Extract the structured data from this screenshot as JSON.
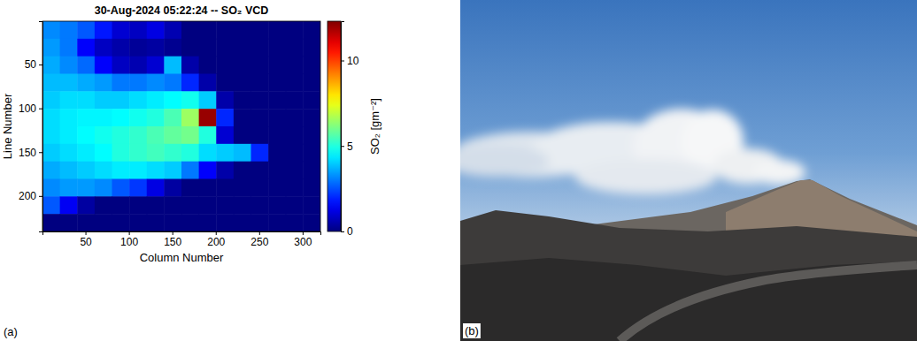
{
  "chart_data": {
    "type": "heatmap",
    "title": "30-Aug-2024 05:22:24 -- SO₂ VCD",
    "x_label": "Column Number",
    "y_label": "Line Number",
    "panel_label": "(a)",
    "xlim": [
      0.5,
      320.5
    ],
    "ylim": [
      0.5,
      240.5
    ],
    "xticks": [
      50,
      100,
      150,
      200,
      250,
      300
    ],
    "yticks": [
      50,
      100,
      150,
      200
    ],
    "x_edges": [
      0.5,
      20.5,
      40.5,
      60.5,
      80.5,
      100.5,
      120.5,
      140.5,
      160.5,
      180.5,
      200.5,
      220.5,
      240.5,
      260.5,
      280.5,
      300.5,
      320.5
    ],
    "y_edges": [
      0.5,
      20.5,
      40.5,
      60.5,
      80.5,
      100.5,
      120.5,
      140.5,
      160.5,
      180.5,
      200.5,
      220.5,
      240.5
    ],
    "values": [
      [
        3.2,
        3.0,
        2.6,
        1.8,
        1.0,
        0.8,
        1.2,
        0.6,
        0,
        0,
        0,
        0,
        0,
        0,
        0,
        0
      ],
      [
        3.4,
        3.0,
        1.5,
        0.8,
        0.5,
        0.3,
        0.4,
        0.2,
        0,
        0,
        0,
        0,
        0,
        0,
        0,
        0
      ],
      [
        3.6,
        3.2,
        2.8,
        1.5,
        0.8,
        0.6,
        1.0,
        3.8,
        0.5,
        0,
        0,
        0,
        0,
        0,
        0,
        0
      ],
      [
        3.8,
        3.8,
        3.6,
        3.4,
        3.0,
        3.0,
        3.2,
        3.0,
        2.0,
        0.5,
        0,
        0,
        0,
        0,
        0,
        0
      ],
      [
        4.0,
        4.2,
        4.2,
        4.0,
        4.0,
        4.2,
        4.4,
        4.6,
        4.8,
        4.0,
        0.5,
        0,
        0,
        0,
        0,
        0
      ],
      [
        4.2,
        4.4,
        4.5,
        4.5,
        4.6,
        4.8,
        5.0,
        5.5,
        6.5,
        12.0,
        2.0,
        0,
        0,
        0,
        0,
        0
      ],
      [
        4.2,
        4.4,
        4.6,
        4.8,
        5.0,
        5.2,
        5.5,
        5.8,
        6.0,
        5.0,
        1.0,
        0,
        0,
        0,
        0,
        0
      ],
      [
        4.0,
        4.2,
        4.4,
        4.6,
        5.0,
        5.2,
        5.4,
        5.2,
        5.0,
        4.2,
        4.0,
        3.8,
        2.0,
        0,
        0,
        0
      ],
      [
        3.6,
        3.8,
        4.0,
        4.2,
        4.4,
        4.4,
        4.2,
        4.0,
        3.0,
        1.5,
        0.5,
        0,
        0,
        0,
        0,
        0
      ],
      [
        3.2,
        3.4,
        3.4,
        3.2,
        2.6,
        2.2,
        1.2,
        0.4,
        0,
        0,
        0,
        0,
        0,
        0,
        0,
        0
      ],
      [
        2.6,
        1.4,
        0.4,
        0,
        0,
        0,
        0,
        0,
        0,
        0,
        0,
        0,
        0,
        0,
        0,
        0
      ],
      [
        0,
        0,
        0,
        0,
        0,
        0,
        0,
        0,
        0,
        0,
        0,
        0,
        0,
        0,
        0,
        0
      ]
    ],
    "colorbar": {
      "label": "SO₂ [gm⁻²]",
      "lim": [
        0,
        12.3
      ],
      "ticks": [
        0,
        5,
        10
      ]
    }
  },
  "photo": {
    "label": "(b)"
  }
}
